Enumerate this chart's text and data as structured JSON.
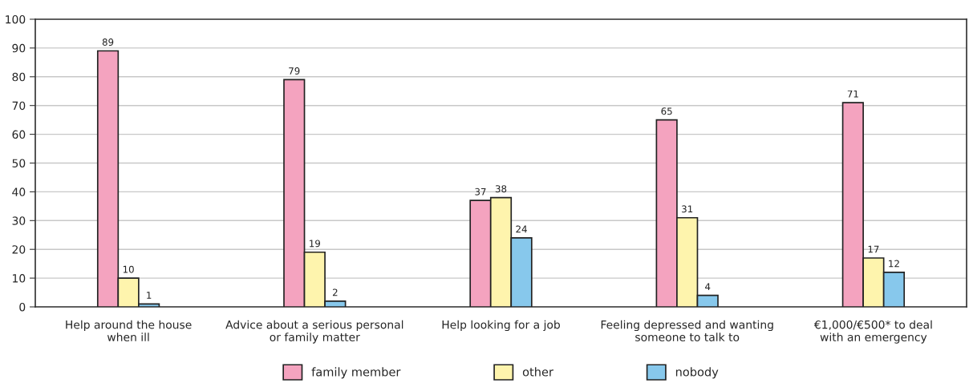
{
  "chart_data": {
    "type": "bar",
    "categories": [
      "Help around the house\nwhen ill",
      "Advice about a serious personal\nor family matter",
      "Help looking for a job",
      "Feeling depressed and wanting\nsomeone to talk to",
      "€1,000/€500* to deal\nwith an emergency"
    ],
    "series": [
      {
        "name": "family member",
        "color": "#f4a3bf",
        "values": [
          89,
          79,
          37,
          65,
          71
        ]
      },
      {
        "name": "other",
        "color": "#fef4ad",
        "values": [
          10,
          19,
          38,
          31,
          17
        ]
      },
      {
        "name": "nobody",
        "color": "#87c8ec",
        "values": [
          1,
          2,
          24,
          4,
          12
        ]
      }
    ],
    "ylim": [
      0,
      100
    ],
    "yticks": [
      0,
      10,
      20,
      30,
      40,
      50,
      60,
      70,
      80,
      90,
      100
    ],
    "grid": "y",
    "legend": "bottom",
    "data_labels": true
  }
}
